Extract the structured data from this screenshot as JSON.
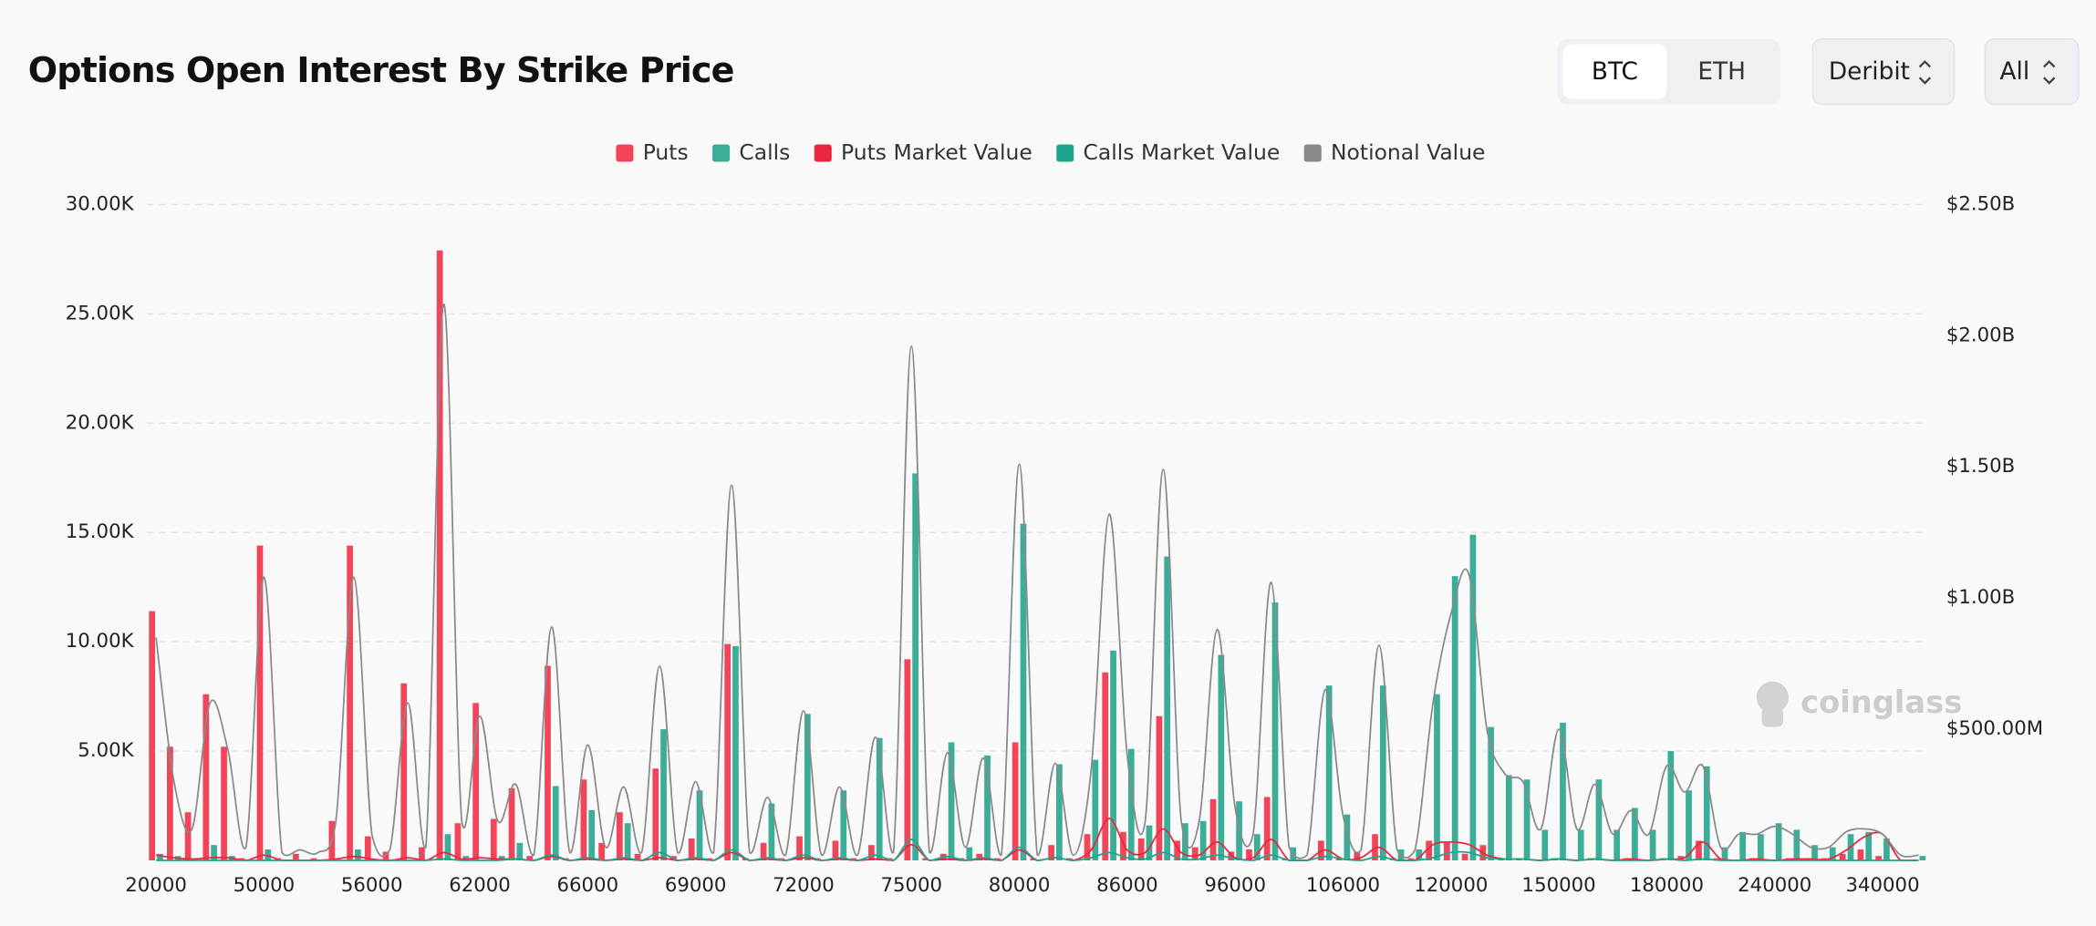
{
  "controls": {
    "coins": [
      "BTC",
      "ETH"
    ],
    "exchange": "Deribit",
    "range": "All"
  },
  "watermark": "coinglass",
  "chart_data": {
    "type": "bar",
    "title": "Options Open Interest By Strike Price",
    "categories": [
      20000,
      null,
      null,
      null,
      null,
      null,
      50000,
      null,
      null,
      null,
      null,
      null,
      56000,
      null,
      null,
      null,
      null,
      null,
      62000,
      null,
      null,
      null,
      null,
      null,
      66000,
      null,
      null,
      null,
      null,
      null,
      69000,
      null,
      null,
      null,
      null,
      null,
      72000,
      null,
      null,
      null,
      null,
      null,
      75000,
      null,
      null,
      null,
      null,
      null,
      80000,
      null,
      null,
      null,
      null,
      null,
      86000,
      null,
      null,
      null,
      null,
      null,
      96000,
      null,
      null,
      null,
      null,
      null,
      106000,
      null,
      null,
      null,
      null,
      null,
      120000,
      null,
      null,
      null,
      null,
      null,
      150000,
      null,
      null,
      null,
      null,
      null,
      180000,
      null,
      null,
      null,
      null,
      null,
      240000,
      null,
      null,
      null,
      null,
      null,
      340000,
      null,
      null
    ],
    "ylim": [
      0,
      30000
    ],
    "yticks": [
      {
        "value": 5000,
        "label": "5.00K"
      },
      {
        "value": 10000,
        "label": "10.00K"
      },
      {
        "value": 15000,
        "label": "15.00K"
      },
      {
        "value": 20000,
        "label": "20.00K"
      },
      {
        "value": 25000,
        "label": "25.00K"
      },
      {
        "value": 30000,
        "label": "30.00K"
      }
    ],
    "y2lim": [
      0,
      2500000000
    ],
    "y2ticks": [
      {
        "value": 500000000,
        "label": "$500.00M"
      },
      {
        "value": 1000000000,
        "label": "$1.00B"
      },
      {
        "value": 1500000000,
        "label": "$1.50B"
      },
      {
        "value": 2000000000,
        "label": "$2.00B"
      },
      {
        "value": 2500000000,
        "label": "$2.50B"
      }
    ],
    "grid": true,
    "legend_position": "top",
    "series": [
      {
        "name": "Puts",
        "type": "bar",
        "color": "#f2455a",
        "values": [
          11400,
          5200,
          2200,
          7600,
          5200,
          100,
          14400,
          100,
          300,
          100,
          1800,
          14400,
          1100,
          400,
          8100,
          600,
          27900,
          1700,
          7200,
          1900,
          3300,
          200,
          8900,
          100,
          3700,
          800,
          2200,
          300,
          4200,
          200,
          1000,
          100,
          9900,
          100,
          800,
          100,
          1100,
          100,
          900,
          100,
          700,
          100,
          9200,
          100,
          300,
          100,
          300,
          100,
          5400,
          100,
          700,
          100,
          1200,
          8600,
          1300,
          1000,
          6600,
          900,
          600,
          2800,
          400,
          500,
          2900,
          100,
          0,
          900,
          100,
          400,
          1200,
          100,
          100,
          900,
          800,
          300,
          700,
          100,
          100,
          0,
          100,
          0,
          100,
          0,
          100,
          0,
          100,
          200,
          900,
          100,
          0,
          100,
          0,
          100,
          100,
          100,
          300,
          500,
          200,
          0,
          0
        ]
      },
      {
        "name": "Calls",
        "type": "bar",
        "color": "#3cae98",
        "values": [
          300,
          200,
          0,
          700,
          200,
          0,
          500,
          0,
          0,
          0,
          0,
          500,
          0,
          0,
          0,
          0,
          1200,
          200,
          0,
          200,
          800,
          0,
          3400,
          0,
          2300,
          0,
          1700,
          0,
          6000,
          0,
          3200,
          0,
          9800,
          0,
          2600,
          0,
          6700,
          0,
          3200,
          0,
          5600,
          0,
          17700,
          0,
          5400,
          600,
          4800,
          0,
          15400,
          0,
          4400,
          0,
          4600,
          9600,
          5100,
          1600,
          13900,
          1700,
          1800,
          9400,
          2700,
          1200,
          11800,
          600,
          0,
          8000,
          2100,
          0,
          8000,
          500,
          500,
          7600,
          13000,
          14900,
          6100,
          3900,
          3700,
          1400,
          6300,
          1400,
          3700,
          1400,
          2400,
          1400,
          5000,
          3200,
          4300,
          600,
          1300,
          1200,
          1700,
          1400,
          700,
          600,
          1200,
          1300,
          1000,
          0,
          200
        ]
      },
      {
        "name": "Puts Market Value",
        "type": "line",
        "axis": "y2",
        "color": "#e8273f",
        "values": [
          20000000.0,
          10000000.0,
          5000000.0,
          10000000.0,
          10000000.0,
          0,
          20000000.0,
          0,
          0,
          0,
          5000000.0,
          15000000.0,
          5000000.0,
          0,
          10000000.0,
          0,
          30000000.0,
          5000000.0,
          10000000.0,
          5000000.0,
          5000000.0,
          0,
          15000000.0,
          0,
          5000000.0,
          0,
          5000000.0,
          0,
          10000000.0,
          0,
          5000000.0,
          0,
          30000000.0,
          0,
          5000000.0,
          0,
          10000000.0,
          0,
          5000000.0,
          0,
          5000000.0,
          0,
          60000000.0,
          0,
          5000000.0,
          0,
          5000000.0,
          0,
          40000000.0,
          0,
          10000000.0,
          0,
          40000000.0,
          160000000.0,
          40000000.0,
          30000000.0,
          120000000.0,
          30000000.0,
          20000000.0,
          70000000.0,
          10000000.0,
          10000000.0,
          80000000.0,
          0,
          0,
          40000000.0,
          5000000.0,
          10000000.0,
          50000000.0,
          0,
          0,
          60000000.0,
          70000000.0,
          60000000.0,
          20000000.0,
          5000000.0,
          5000000.0,
          0,
          5000000.0,
          0,
          5000000.0,
          0,
          5000000.0,
          0,
          5000000.0,
          10000000.0,
          70000000.0,
          5000000.0,
          0,
          5000000.0,
          0,
          5000000.0,
          5000000.0,
          5000000.0,
          40000000.0,
          90000000.0,
          100000000.0,
          0,
          0
        ]
      },
      {
        "name": "Calls Market Value",
        "type": "line",
        "axis": "y2",
        "color": "#1fa58d",
        "values": [
          0,
          0,
          0,
          0,
          0,
          0,
          0,
          0,
          0,
          0,
          0,
          0,
          0,
          0,
          0,
          0,
          5000000.0,
          0,
          0,
          0,
          5000000.0,
          0,
          20000000.0,
          0,
          10000000.0,
          0,
          10000000.0,
          0,
          30000000.0,
          0,
          10000000.0,
          0,
          40000000.0,
          0,
          10000000.0,
          0,
          20000000.0,
          0,
          10000000.0,
          0,
          20000000.0,
          0,
          80000000.0,
          0,
          15000000.0,
          0,
          10000000.0,
          0,
          50000000.0,
          0,
          10000000.0,
          0,
          10000000.0,
          30000000.0,
          10000000.0,
          5000000.0,
          30000000.0,
          5000000.0,
          5000000.0,
          20000000.0,
          5000000.0,
          0,
          20000000.0,
          0,
          0,
          15000000.0,
          5000000.0,
          0,
          15000000.0,
          0,
          0,
          10000000.0,
          30000000.0,
          30000000.0,
          10000000.0,
          5000000.0,
          5000000.0,
          0,
          5000000.0,
          0,
          5000000.0,
          0,
          0,
          0,
          5000000.0,
          0,
          5000000.0,
          0,
          0,
          0,
          0,
          0,
          0,
          0,
          0,
          0,
          0,
          0,
          0
        ]
      },
      {
        "name": "Notional Value",
        "type": "line",
        "axis": "y2",
        "color": "#8a8a8a",
        "values": [
          850000000.0,
          300000000.0,
          120000000.0,
          600000000.0,
          420000000.0,
          50000000.0,
          1080000000.0,
          30000000.0,
          40000000.0,
          30000000.0,
          150000000.0,
          1080000000.0,
          100000000.0,
          40000000.0,
          600000000.0,
          50000000.0,
          2120000000.0,
          150000000.0,
          550000000.0,
          150000000.0,
          290000000.0,
          20000000.0,
          890000000.0,
          30000000.0,
          440000000.0,
          50000000.0,
          280000000.0,
          30000000.0,
          740000000.0,
          30000000.0,
          300000000.0,
          30000000.0,
          1430000000.0,
          30000000.0,
          240000000.0,
          20000000.0,
          570000000.0,
          20000000.0,
          280000000.0,
          20000000.0,
          470000000.0,
          30000000.0,
          1960000000.0,
          30000000.0,
          410000000.0,
          50000000.0,
          390000000.0,
          20000000.0,
          1510000000.0,
          20000000.0,
          370000000.0,
          20000000.0,
          350000000.0,
          1320000000.0,
          400000000.0,
          150000000.0,
          1490000000.0,
          150000000.0,
          150000000.0,
          880000000.0,
          200000000.0,
          100000000.0,
          1060000000.0,
          50000000.0,
          20000000.0,
          650000000.0,
          170000000.0,
          40000000.0,
          820000000.0,
          40000000.0,
          40000000.0,
          600000000.0,
          940000000.0,
          1090000000.0,
          500000000.0,
          330000000.0,
          300000000.0,
          120000000.0,
          500000000.0,
          120000000.0,
          290000000.0,
          100000000.0,
          190000000.0,
          100000000.0,
          360000000.0,
          260000000.0,
          360000000.0,
          50000000.0,
          100000000.0,
          100000000.0,
          130000000.0,
          100000000.0,
          50000000.0,
          50000000.0,
          110000000.0,
          120000000.0,
          100000000.0,
          20000000.0,
          20000000.0
        ]
      }
    ]
  }
}
